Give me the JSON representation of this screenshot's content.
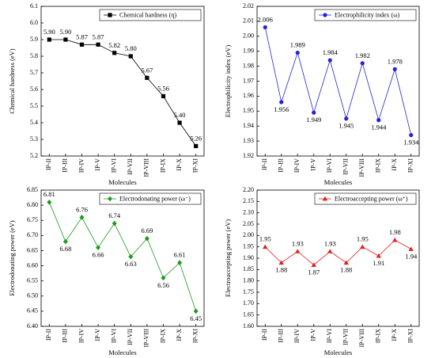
{
  "chart_data": [
    {
      "type": "line",
      "series": [
        {
          "name": "Chemical hardness (η)",
          "color": "#000000",
          "marker": "square",
          "values": [
            5.9,
            5.9,
            5.87,
            5.87,
            5.82,
            5.8,
            5.67,
            5.56,
            5.4,
            5.26
          ],
          "value_labels": [
            "5.90",
            "5.90",
            "5.87",
            "5.87",
            "5.82",
            "5.80",
            "5.67",
            "5.56",
            "5.40",
            "5.26"
          ]
        }
      ],
      "categories": [
        "IP-II",
        "IP-III",
        "IP-IV",
        "IP-V",
        "IP-VI",
        "IP-VII",
        "IP-VIII",
        "IP-IX",
        "IP-X",
        "IP-XI"
      ],
      "x_label": "Molecules",
      "y_label": "Chemical hardness (eV)",
      "ylim": [
        5.2,
        6.1
      ],
      "yticks": [
        5.2,
        5.3,
        5.4,
        5.5,
        5.6,
        5.7,
        5.8,
        5.9,
        {
          "value": 6,
          "label": "6.0"
        },
        6.1
      ],
      "legend": "top-right"
    },
    {
      "type": "line",
      "series": [
        {
          "name": "Electrophilicity index (ω)",
          "color": "#2323d8",
          "marker": "circle",
          "values": [
            2.006,
            1.956,
            1.989,
            1.949,
            1.984,
            1.945,
            1.982,
            1.944,
            1.978,
            1.934
          ]
        }
      ],
      "categories": [
        "IP-II",
        "IP-III",
        "IP-IV",
        "IP-V",
        "IP-VI",
        "IP-VII",
        "IP-VIII",
        "IP-IX",
        "IP-X",
        "IP-XI"
      ],
      "x_label": "Molecules",
      "y_label": "Electrophilicity index (eV)",
      "ylim": [
        1.92,
        2.02
      ],
      "yticks": [
        1.92,
        1.93,
        1.94,
        1.95,
        1.96,
        1.97,
        1.98,
        1.99,
        {
          "value": 2,
          "label": "2.00"
        },
        2.01,
        2.02
      ],
      "legend": "top-right"
    },
    {
      "type": "line",
      "series": [
        {
          "name": "Electrodonating power (ω⁻)",
          "color": "#1f9a1f",
          "marker": "diamond",
          "values": [
            6.81,
            6.68,
            6.76,
            6.66,
            6.74,
            6.63,
            6.69,
            6.56,
            6.61,
            6.45
          ]
        }
      ],
      "categories": [
        "IP-II",
        "IP-III",
        "IP-IV",
        "IP-V",
        "IP-VI",
        "IP-VII",
        "IP-VIII",
        "IP-IX",
        "IP-X",
        "IP-XI"
      ],
      "x_label": "Molecules",
      "y_label": "Electrodonating power (eV)",
      "ylim": [
        6.4,
        6.85
      ],
      "yticks": [
        {
          "value": 6.4,
          "label": "6.40"
        },
        6.45,
        {
          "value": 6.5,
          "label": "6.50"
        },
        6.55,
        {
          "value": 6.6,
          "label": "6.60"
        },
        6.65,
        {
          "value": 6.7,
          "label": "6.70"
        },
        6.75,
        {
          "value": 6.8,
          "label": "6.80"
        },
        6.85
      ],
      "legend": "top-right"
    },
    {
      "type": "line",
      "series": [
        {
          "name": "Electroaccepting power (ω⁺)",
          "color": "#e02020",
          "marker": "triangle",
          "values": [
            1.95,
            1.88,
            1.93,
            1.87,
            1.93,
            1.88,
            1.95,
            1.91,
            1.98,
            1.94
          ]
        }
      ],
      "categories": [
        "IP-II",
        "IP-III",
        "IP-IV",
        "IP-V",
        "IP-VI",
        "IP-VII",
        "IP-VIII",
        "IP-IX",
        "IP-X",
        "IP-XI"
      ],
      "x_label": "Molecules",
      "y_label": "Electroaccepting power (eV)",
      "ylim": [
        1.6,
        2.2
      ],
      "yticks": [
        {
          "value": 1.6,
          "label": "1.60"
        },
        1.65,
        {
          "value": 1.7,
          "label": "1.70"
        },
        1.75,
        {
          "value": 1.8,
          "label": "1.80"
        },
        1.85,
        {
          "value": 1.9,
          "label": "1.90"
        },
        1.95,
        {
          "value": 2,
          "label": "2.00"
        },
        2.05,
        {
          "value": 2.1,
          "label": "2.10"
        },
        2.15,
        {
          "value": 2.2,
          "label": "2.20"
        }
      ],
      "legend": "top-right"
    }
  ]
}
